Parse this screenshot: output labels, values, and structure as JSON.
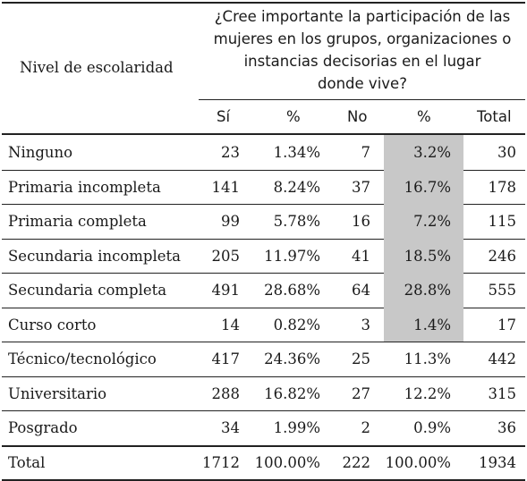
{
  "header": {
    "row_label_header": "Nivel de escolaridad",
    "question_lines": [
      "¿Cree importante la participación de las",
      "mujeres en los grupos, organizaciones o",
      "instancias decisorias en el lugar",
      "donde vive?"
    ],
    "columns": [
      "Sí",
      "%",
      "No",
      "%",
      "Total"
    ]
  },
  "rows": [
    {
      "label": "Ninguno",
      "si": "23",
      "si_pct": "1.34%",
      "no": "7",
      "no_pct": "3.2%",
      "total": "30",
      "highlight": true
    },
    {
      "label": "Primaria incompleta",
      "si": "141",
      "si_pct": "8.24%",
      "no": "37",
      "no_pct": "16.7%",
      "total": "178",
      "highlight": true
    },
    {
      "label": "Primaria completa",
      "si": "99",
      "si_pct": "5.78%",
      "no": "16",
      "no_pct": "7.2%",
      "total": "115",
      "highlight": true
    },
    {
      "label": "Secundaria incompleta",
      "si": "205",
      "si_pct": "11.97%",
      "no": "41",
      "no_pct": "18.5%",
      "total": "246",
      "highlight": true
    },
    {
      "label": "Secundaria completa",
      "si": "491",
      "si_pct": "28.68%",
      "no": "64",
      "no_pct": "28.8%",
      "total": "555",
      "highlight": true
    },
    {
      "label": "Curso corto",
      "si": "14",
      "si_pct": "0.82%",
      "no": "3",
      "no_pct": "1.4%",
      "total": "17",
      "highlight": true
    },
    {
      "label": "Técnico/tecnológico",
      "si": "417",
      "si_pct": "24.36%",
      "no": "25",
      "no_pct": "11.3%",
      "total": "442",
      "highlight": false
    },
    {
      "label": "Universitario",
      "si": "288",
      "si_pct": "16.82%",
      "no": "27",
      "no_pct": "12.2%",
      "total": "315",
      "highlight": false
    },
    {
      "label": "Posgrado",
      "si": "34",
      "si_pct": "1.99%",
      "no": "2",
      "no_pct": "0.9%",
      "total": "36",
      "highlight": false
    }
  ],
  "total_row": {
    "label": "Total",
    "si": "1712",
    "si_pct": "100.00%",
    "no": "222",
    "no_pct": "100.00%",
    "total": "1934"
  },
  "colors": {
    "highlight": "#c8c8c8",
    "rule": "#222222",
    "text": "#1a1a1a"
  }
}
